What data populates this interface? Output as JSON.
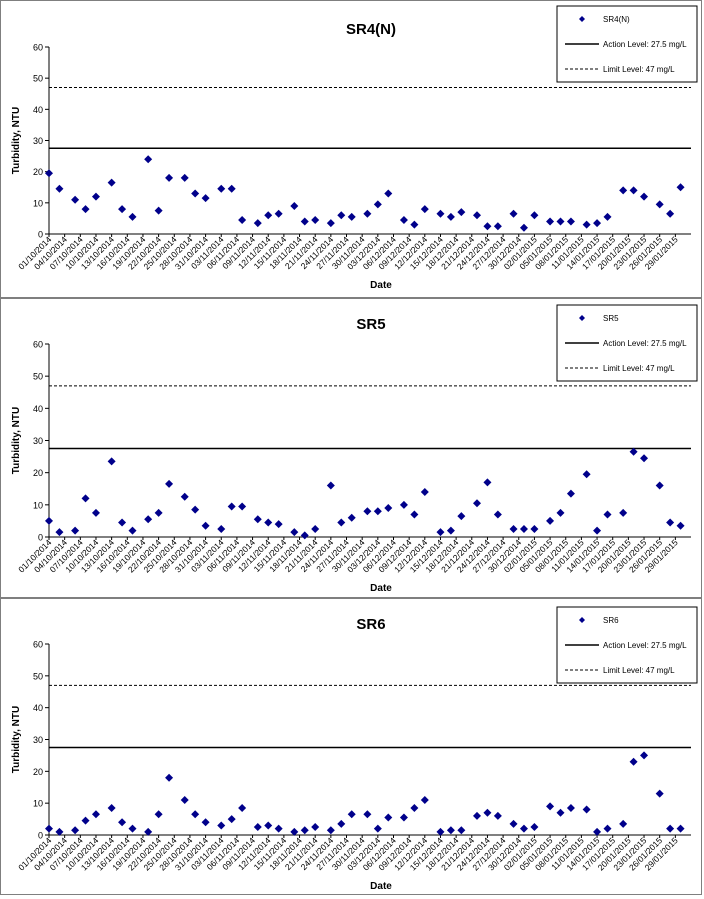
{
  "series_color": "#00008B",
  "legend_labels": {
    "action": "Action Level: 27.5 mg/L",
    "limit": "Limit Level: 47 mg/L"
  },
  "chart_data": [
    {
      "type": "scatter",
      "title": "SR4(N)",
      "xlabel": "Date",
      "ylabel": "Turbidity, NTU",
      "ylim": [
        0,
        60
      ],
      "yticks": [
        "0",
        "10",
        "20",
        "30",
        "40",
        "50",
        "60"
      ],
      "xticks": [
        "01/10/2014",
        "04/10/2014",
        "07/10/2014",
        "10/10/2014",
        "13/10/2014",
        "16/10/2014",
        "19/10/2014",
        "22/10/2014",
        "25/10/2014",
        "28/10/2014",
        "31/10/2014",
        "03/11/2014",
        "06/11/2014",
        "09/11/2014",
        "12/11/2014",
        "15/11/2014",
        "18/11/2014",
        "21/11/2014",
        "24/11/2014",
        "27/11/2014",
        "30/11/2014",
        "03/12/2014",
        "06/12/2014",
        "09/12/2014",
        "12/12/2014",
        "15/12/2014",
        "18/12/2014",
        "21/12/2014",
        "24/12/2014",
        "27/12/2014",
        "30/12/2014",
        "02/01/2015",
        "05/01/2015",
        "08/01/2015",
        "11/01/2015",
        "14/01/2015",
        "17/01/2015",
        "20/01/2015",
        "23/01/2015",
        "26/01/2015",
        "29/01/2015"
      ],
      "action_level": 27.5,
      "limit_level": 47,
      "legend": [
        "SR4(N)",
        "Action Level: 27.5 mg/L",
        "Limit Level: 47 mg/L"
      ],
      "legend_position": "top-right",
      "series": [
        {
          "name": "SR4(N)",
          "points": [
            {
              "x": "01/10/2014",
              "y": 19.5
            },
            {
              "x": "03/10/2014",
              "y": 14.5
            },
            {
              "x": "06/10/2014",
              "y": 11
            },
            {
              "x": "08/10/2014",
              "y": 8
            },
            {
              "x": "10/10/2014",
              "y": 12
            },
            {
              "x": "13/10/2014",
              "y": 16.5
            },
            {
              "x": "15/10/2014",
              "y": 8
            },
            {
              "x": "17/10/2014",
              "y": 5.5
            },
            {
              "x": "20/10/2014",
              "y": 24
            },
            {
              "x": "22/10/2014",
              "y": 7.5
            },
            {
              "x": "24/10/2014",
              "y": 18
            },
            {
              "x": "27/10/2014",
              "y": 18
            },
            {
              "x": "29/10/2014",
              "y": 13
            },
            {
              "x": "31/10/2014",
              "y": 11.5
            },
            {
              "x": "03/11/2014",
              "y": 14.5
            },
            {
              "x": "05/11/2014",
              "y": 14.5
            },
            {
              "x": "07/11/2014",
              "y": 4.5
            },
            {
              "x": "10/11/2014",
              "y": 3.5
            },
            {
              "x": "12/11/2014",
              "y": 6
            },
            {
              "x": "14/11/2014",
              "y": 6.5
            },
            {
              "x": "17/11/2014",
              "y": 9
            },
            {
              "x": "19/11/2014",
              "y": 4
            },
            {
              "x": "21/11/2014",
              "y": 4.5
            },
            {
              "x": "24/11/2014",
              "y": 3.5
            },
            {
              "x": "26/11/2014",
              "y": 6
            },
            {
              "x": "28/11/2014",
              "y": 5.5
            },
            {
              "x": "01/12/2014",
              "y": 6.5
            },
            {
              "x": "03/12/2014",
              "y": 9.5
            },
            {
              "x": "05/12/2014",
              "y": 13
            },
            {
              "x": "08/12/2014",
              "y": 4.5
            },
            {
              "x": "10/12/2014",
              "y": 3
            },
            {
              "x": "12/12/2014",
              "y": 8
            },
            {
              "x": "15/12/2014",
              "y": 6.5
            },
            {
              "x": "17/12/2014",
              "y": 5.5
            },
            {
              "x": "19/12/2014",
              "y": 7
            },
            {
              "x": "22/12/2014",
              "y": 6
            },
            {
              "x": "24/12/2014",
              "y": 2.5
            },
            {
              "x": "26/12/2014",
              "y": 2.5
            },
            {
              "x": "29/12/2014",
              "y": 6.5
            },
            {
              "x": "31/12/2014",
              "y": 2
            },
            {
              "x": "02/01/2015",
              "y": 6
            },
            {
              "x": "05/01/2015",
              "y": 4
            },
            {
              "x": "07/01/2015",
              "y": 4
            },
            {
              "x": "09/01/2015",
              "y": 4
            },
            {
              "x": "12/01/2015",
              "y": 3
            },
            {
              "x": "14/01/2015",
              "y": 3.5
            },
            {
              "x": "16/01/2015",
              "y": 5.5
            },
            {
              "x": "19/01/2015",
              "y": 14
            },
            {
              "x": "21/01/2015",
              "y": 14
            },
            {
              "x": "23/01/2015",
              "y": 12
            },
            {
              "x": "26/01/2015",
              "y": 9.5
            },
            {
              "x": "28/01/2015",
              "y": 6.5
            },
            {
              "x": "30/01/2015",
              "y": 15
            }
          ]
        }
      ]
    },
    {
      "type": "scatter",
      "title": "SR5",
      "xlabel": "Date",
      "ylabel": "Turbidity, NTU",
      "ylim": [
        0,
        60
      ],
      "yticks": [
        "0",
        "10",
        "20",
        "30",
        "40",
        "50",
        "60"
      ],
      "xticks": [
        "01/10/2014",
        "04/10/2014",
        "07/10/2014",
        "10/10/2014",
        "13/10/2014",
        "16/10/2014",
        "19/10/2014",
        "22/10/2014",
        "25/10/2014",
        "28/10/2014",
        "31/10/2014",
        "03/11/2014",
        "06/11/2014",
        "09/11/2014",
        "12/11/2014",
        "15/11/2014",
        "18/11/2014",
        "21/11/2014",
        "24/11/2014",
        "27/11/2014",
        "30/11/2014",
        "03/12/2014",
        "06/12/2014",
        "09/12/2014",
        "12/12/2014",
        "15/12/2014",
        "18/12/2014",
        "21/12/2014",
        "24/12/2014",
        "27/12/2014",
        "30/12/2014",
        "02/01/2015",
        "05/01/2015",
        "08/01/2015",
        "11/01/2015",
        "14/01/2015",
        "17/01/2015",
        "20/01/2015",
        "23/01/2015",
        "26/01/2015",
        "29/01/2015"
      ],
      "action_level": 27.5,
      "limit_level": 47,
      "legend": [
        "SR5",
        "Action Level: 27.5 mg/L",
        "Limit Level: 47 mg/L"
      ],
      "legend_position": "top-right",
      "series": [
        {
          "name": "SR5",
          "points": [
            {
              "x": "01/10/2014",
              "y": 5
            },
            {
              "x": "03/10/2014",
              "y": 1.5
            },
            {
              "x": "06/10/2014",
              "y": 2
            },
            {
              "x": "08/10/2014",
              "y": 12
            },
            {
              "x": "10/10/2014",
              "y": 7.5
            },
            {
              "x": "13/10/2014",
              "y": 23.5
            },
            {
              "x": "15/10/2014",
              "y": 4.5
            },
            {
              "x": "17/10/2014",
              "y": 2
            },
            {
              "x": "20/10/2014",
              "y": 5.5
            },
            {
              "x": "22/10/2014",
              "y": 7.5
            },
            {
              "x": "24/10/2014",
              "y": 16.5
            },
            {
              "x": "27/10/2014",
              "y": 12.5
            },
            {
              "x": "29/10/2014",
              "y": 8.5
            },
            {
              "x": "31/10/2014",
              "y": 3.5
            },
            {
              "x": "03/11/2014",
              "y": 2.5
            },
            {
              "x": "05/11/2014",
              "y": 9.5
            },
            {
              "x": "07/11/2014",
              "y": 9.5
            },
            {
              "x": "10/11/2014",
              "y": 5.5
            },
            {
              "x": "12/11/2014",
              "y": 4.5
            },
            {
              "x": "14/11/2014",
              "y": 4
            },
            {
              "x": "17/11/2014",
              "y": 1.5
            },
            {
              "x": "19/11/2014",
              "y": 0.5
            },
            {
              "x": "21/11/2014",
              "y": 2.5
            },
            {
              "x": "24/11/2014",
              "y": 16
            },
            {
              "x": "26/11/2014",
              "y": 4.5
            },
            {
              "x": "28/11/2014",
              "y": 6
            },
            {
              "x": "01/12/2014",
              "y": 8
            },
            {
              "x": "03/12/2014",
              "y": 8
            },
            {
              "x": "05/12/2014",
              "y": 9
            },
            {
              "x": "08/12/2014",
              "y": 10
            },
            {
              "x": "10/12/2014",
              "y": 7
            },
            {
              "x": "12/12/2014",
              "y": 14
            },
            {
              "x": "15/12/2014",
              "y": 1.5
            },
            {
              "x": "17/12/2014",
              "y": 2
            },
            {
              "x": "19/12/2014",
              "y": 6.5
            },
            {
              "x": "22/12/2014",
              "y": 10.5
            },
            {
              "x": "24/12/2014",
              "y": 17
            },
            {
              "x": "26/12/2014",
              "y": 7
            },
            {
              "x": "29/12/2014",
              "y": 2.5
            },
            {
              "x": "31/12/2014",
              "y": 2.5
            },
            {
              "x": "02/01/2015",
              "y": 2.5
            },
            {
              "x": "05/01/2015",
              "y": 5
            },
            {
              "x": "07/01/2015",
              "y": 7.5
            },
            {
              "x": "09/01/2015",
              "y": 13.5
            },
            {
              "x": "12/01/2015",
              "y": 19.5
            },
            {
              "x": "14/01/2015",
              "y": 2
            },
            {
              "x": "16/01/2015",
              "y": 7
            },
            {
              "x": "19/01/2015",
              "y": 7.5
            },
            {
              "x": "21/01/2015",
              "y": 26.5
            },
            {
              "x": "23/01/2015",
              "y": 24.5
            },
            {
              "x": "26/01/2015",
              "y": 16
            },
            {
              "x": "28/01/2015",
              "y": 4.5
            },
            {
              "x": "30/01/2015",
              "y": 3.5
            }
          ]
        }
      ]
    },
    {
      "type": "scatter",
      "title": "SR6",
      "xlabel": "Date",
      "ylabel": "Turbidity, NTU",
      "ylim": [
        0,
        60
      ],
      "yticks": [
        "0",
        "10",
        "20",
        "30",
        "40",
        "50",
        "60"
      ],
      "xticks": [
        "01/10/2014",
        "04/10/2014",
        "07/10/2014",
        "10/10/2014",
        "13/10/2014",
        "16/10/2014",
        "19/10/2014",
        "22/10/2014",
        "25/10/2014",
        "28/10/2014",
        "31/10/2014",
        "03/11/2014",
        "06/11/2014",
        "09/11/2014",
        "12/11/2014",
        "15/11/2014",
        "18/11/2014",
        "21/11/2014",
        "24/11/2014",
        "27/11/2014",
        "30/11/2014",
        "03/12/2014",
        "06/12/2014",
        "09/12/2014",
        "12/12/2014",
        "15/12/2014",
        "18/12/2014",
        "21/12/2014",
        "24/12/2014",
        "27/12/2014",
        "30/12/2014",
        "02/01/2015",
        "05/01/2015",
        "08/01/2015",
        "11/01/2015",
        "14/01/2015",
        "17/01/2015",
        "20/01/2015",
        "23/01/2015",
        "26/01/2015",
        "29/01/2015"
      ],
      "action_level": 27.5,
      "limit_level": 47,
      "legend": [
        "SR6",
        "Action Level: 27.5 mg/L",
        "Limit Level: 47 mg/L"
      ],
      "legend_position": "top-right",
      "series": [
        {
          "name": "SR6",
          "points": [
            {
              "x": "01/10/2014",
              "y": 2
            },
            {
              "x": "03/10/2014",
              "y": 1
            },
            {
              "x": "06/10/2014",
              "y": 1.5
            },
            {
              "x": "08/10/2014",
              "y": 4.5
            },
            {
              "x": "10/10/2014",
              "y": 6.5
            },
            {
              "x": "13/10/2014",
              "y": 8.5
            },
            {
              "x": "15/10/2014",
              "y": 4
            },
            {
              "x": "17/10/2014",
              "y": 2
            },
            {
              "x": "20/10/2014",
              "y": 1
            },
            {
              "x": "22/10/2014",
              "y": 6.5
            },
            {
              "x": "24/10/2014",
              "y": 18
            },
            {
              "x": "27/10/2014",
              "y": 11
            },
            {
              "x": "29/10/2014",
              "y": 6.5
            },
            {
              "x": "31/10/2014",
              "y": 4
            },
            {
              "x": "03/11/2014",
              "y": 3
            },
            {
              "x": "05/11/2014",
              "y": 5
            },
            {
              "x": "07/11/2014",
              "y": 8.5
            },
            {
              "x": "10/11/2014",
              "y": 2.5
            },
            {
              "x": "12/11/2014",
              "y": 3
            },
            {
              "x": "14/11/2014",
              "y": 2
            },
            {
              "x": "17/11/2014",
              "y": 1
            },
            {
              "x": "19/11/2014",
              "y": 1.5
            },
            {
              "x": "21/11/2014",
              "y": 2.5
            },
            {
              "x": "24/11/2014",
              "y": 1.5
            },
            {
              "x": "26/11/2014",
              "y": 3.5
            },
            {
              "x": "28/11/2014",
              "y": 6.5
            },
            {
              "x": "01/12/2014",
              "y": 6.5
            },
            {
              "x": "03/12/2014",
              "y": 2
            },
            {
              "x": "05/12/2014",
              "y": 5.5
            },
            {
              "x": "08/12/2014",
              "y": 5.5
            },
            {
              "x": "10/12/2014",
              "y": 8.5
            },
            {
              "x": "12/12/2014",
              "y": 11
            },
            {
              "x": "15/12/2014",
              "y": 1
            },
            {
              "x": "17/12/2014",
              "y": 1.5
            },
            {
              "x": "19/12/2014",
              "y": 1.5
            },
            {
              "x": "22/12/2014",
              "y": 6
            },
            {
              "x": "24/12/2014",
              "y": 7
            },
            {
              "x": "26/12/2014",
              "y": 6
            },
            {
              "x": "29/12/2014",
              "y": 3.5
            },
            {
              "x": "31/12/2014",
              "y": 2
            },
            {
              "x": "02/01/2015",
              "y": 2.5
            },
            {
              "x": "05/01/2015",
              "y": 9
            },
            {
              "x": "07/01/2015",
              "y": 7
            },
            {
              "x": "09/01/2015",
              "y": 8.5
            },
            {
              "x": "12/01/2015",
              "y": 8
            },
            {
              "x": "14/01/2015",
              "y": 1
            },
            {
              "x": "16/01/2015",
              "y": 2
            },
            {
              "x": "19/01/2015",
              "y": 3.5
            },
            {
              "x": "21/01/2015",
              "y": 23
            },
            {
              "x": "23/01/2015",
              "y": 25
            },
            {
              "x": "26/01/2015",
              "y": 13
            },
            {
              "x": "28/01/2015",
              "y": 2
            },
            {
              "x": "30/01/2015",
              "y": 2
            }
          ]
        }
      ]
    }
  ]
}
